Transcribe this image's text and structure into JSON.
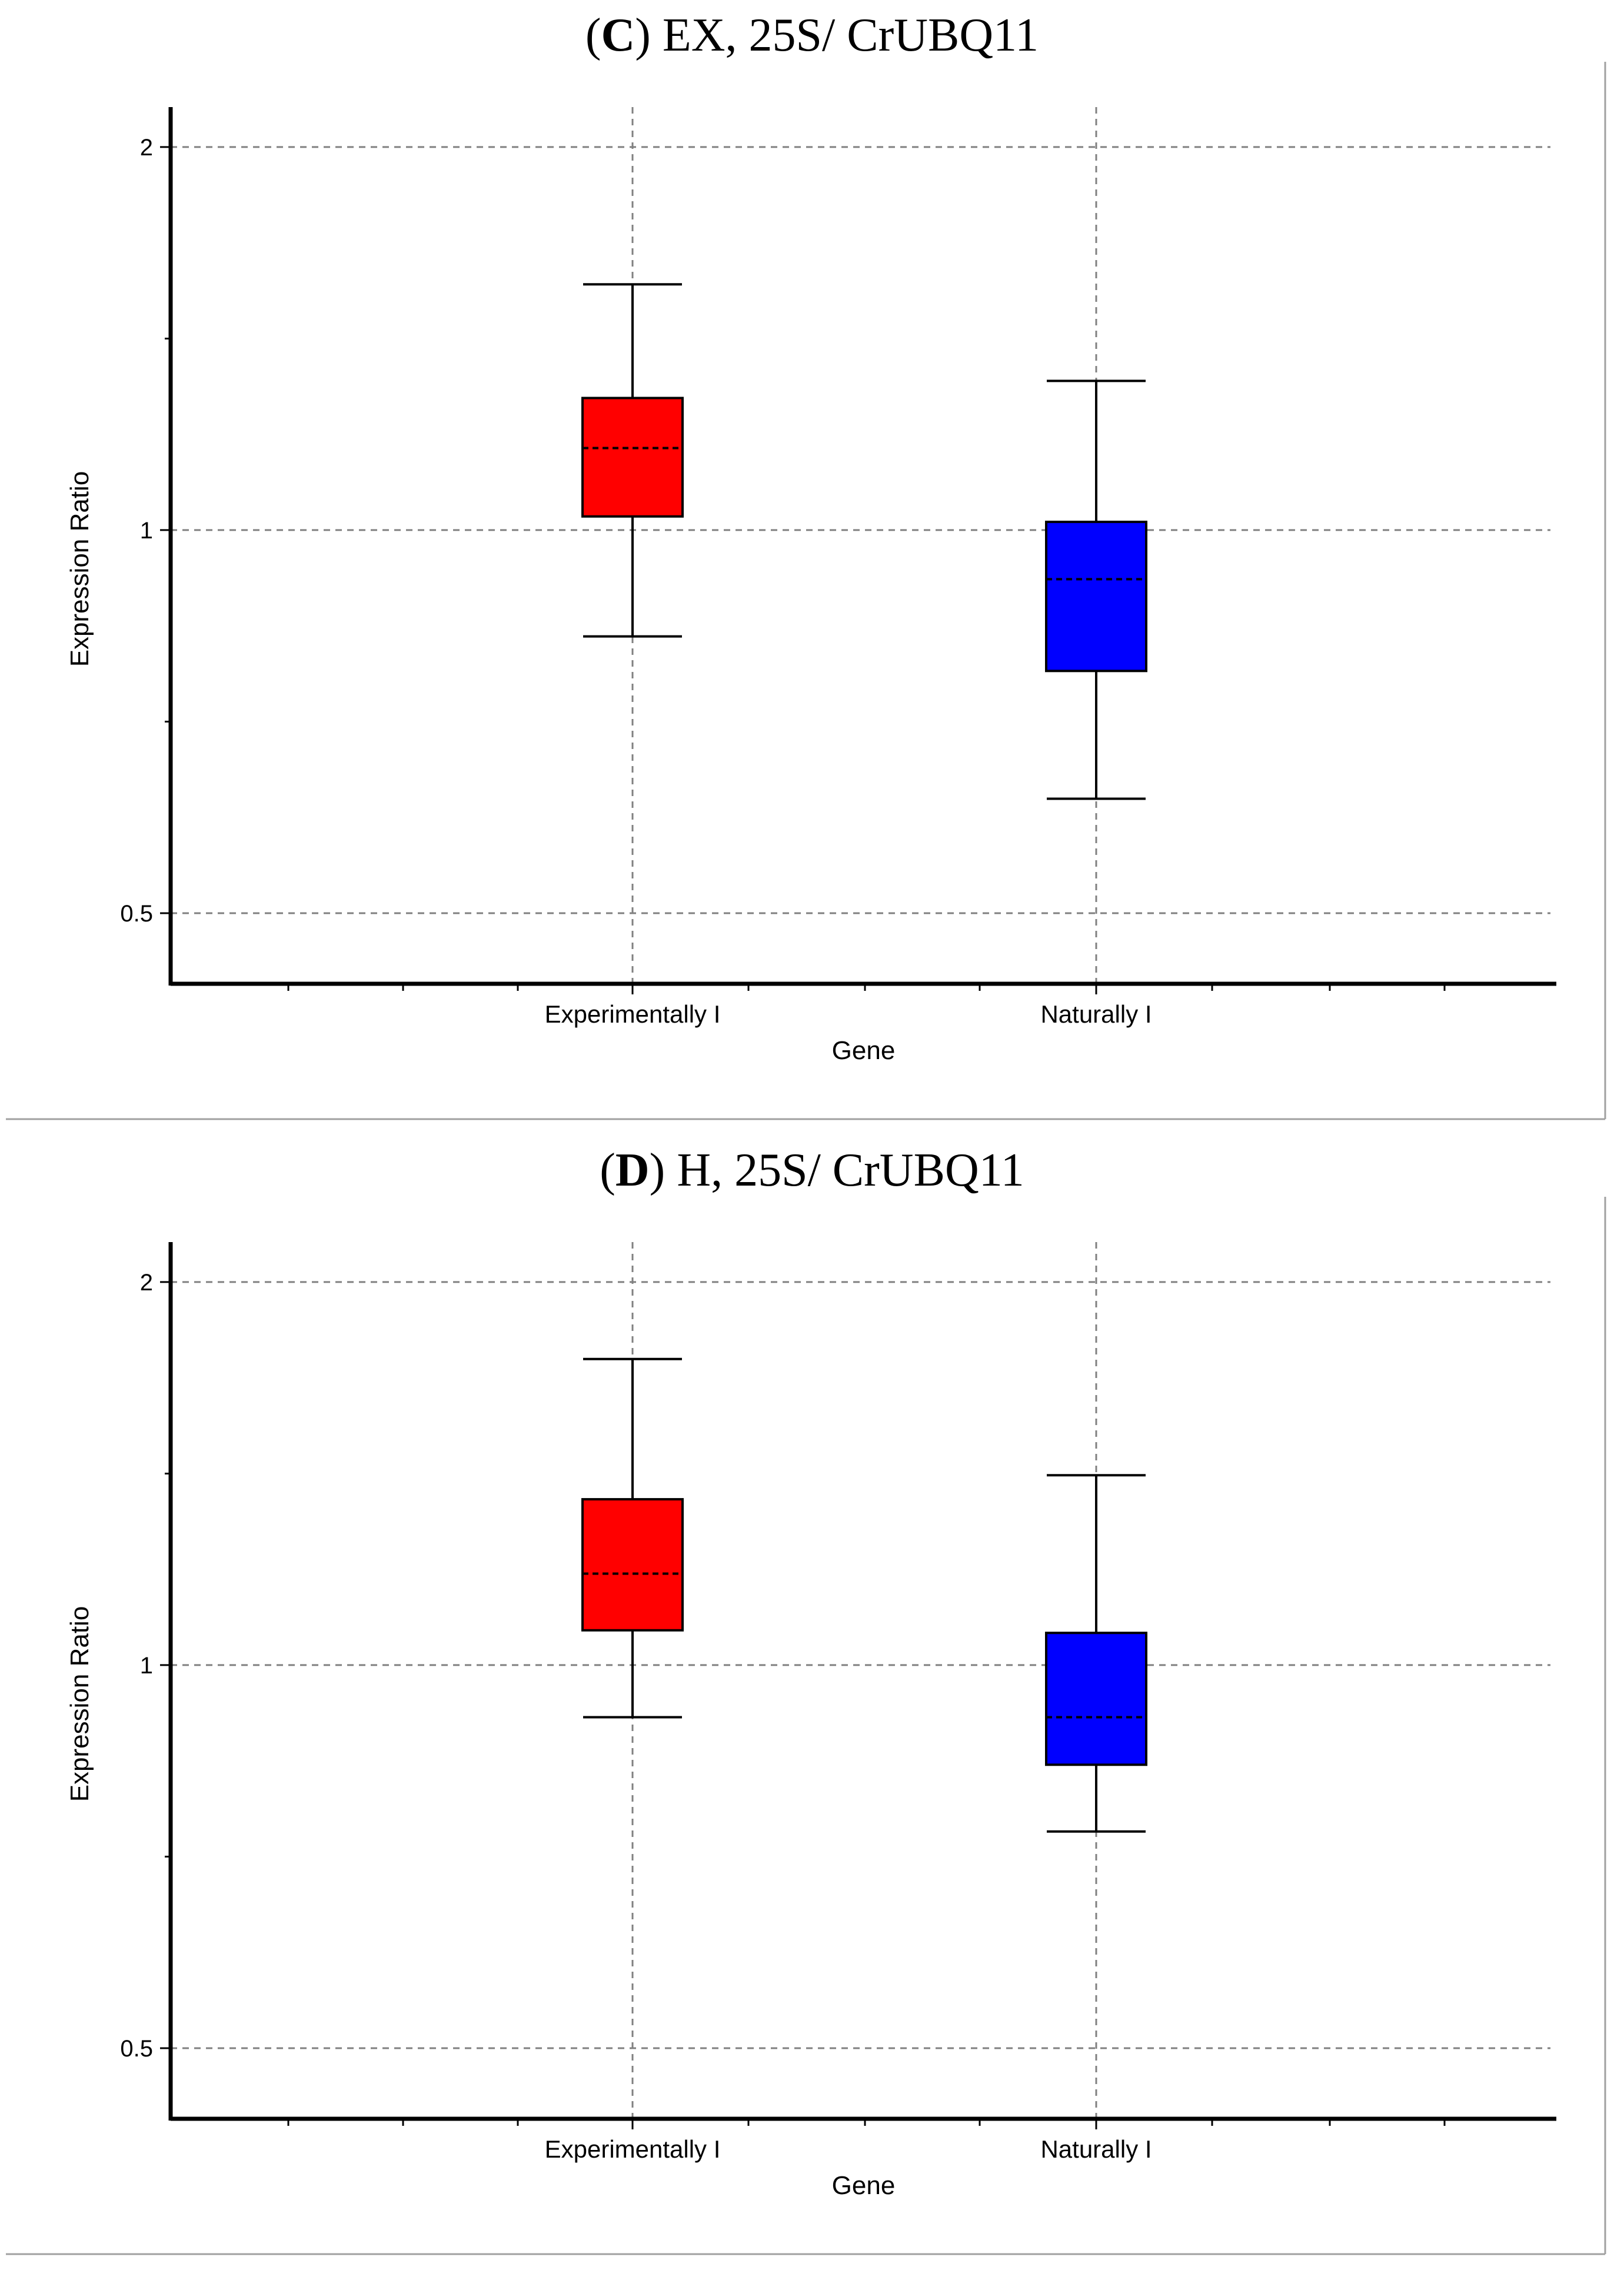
{
  "chart_data": [
    {
      "type": "box",
      "panel_letter": "C",
      "title": "EX, 25S/ CrUBQ11",
      "xlabel": "Gene",
      "ylabel": "Expression Ratio",
      "yscale": "log2",
      "ylim": [
        0.44,
        2.15
      ],
      "yticks": [
        0.5,
        1,
        2
      ],
      "ytick_labels": [
        "0.5",
        "1",
        "2"
      ],
      "grid": true,
      "categories": [
        "Experimentally I",
        "Naturally I"
      ],
      "boxes": [
        {
          "name": "Experimentally I",
          "color": "#ff0000",
          "whisker_low": 0.825,
          "q1": 1.025,
          "median": 1.16,
          "q3": 1.27,
          "whisker_high": 1.56
        },
        {
          "name": "Naturally I",
          "color": "#0000ff",
          "whisker_low": 0.615,
          "q1": 0.775,
          "median": 0.915,
          "q3": 1.015,
          "whisker_high": 1.31
        }
      ]
    },
    {
      "type": "box",
      "panel_letter": "D",
      "title": "H, 25S/ CrUBQ11",
      "xlabel": "Gene",
      "ylabel": "Expression Ratio",
      "yscale": "log2",
      "ylim": [
        0.44,
        2.15
      ],
      "yticks": [
        0.5,
        1,
        2
      ],
      "ytick_labels": [
        "0.5",
        "1",
        "2"
      ],
      "grid": true,
      "categories": [
        "Experimentally I",
        "Naturally I"
      ],
      "boxes": [
        {
          "name": "Experimentally I",
          "color": "#ff0000",
          "whisker_low": 0.91,
          "q1": 1.065,
          "median": 1.18,
          "q3": 1.35,
          "whisker_high": 1.74
        },
        {
          "name": "Naturally I",
          "color": "#0000ff",
          "whisker_low": 0.74,
          "q1": 0.835,
          "median": 0.91,
          "q3": 1.06,
          "whisker_high": 1.41
        }
      ]
    }
  ]
}
